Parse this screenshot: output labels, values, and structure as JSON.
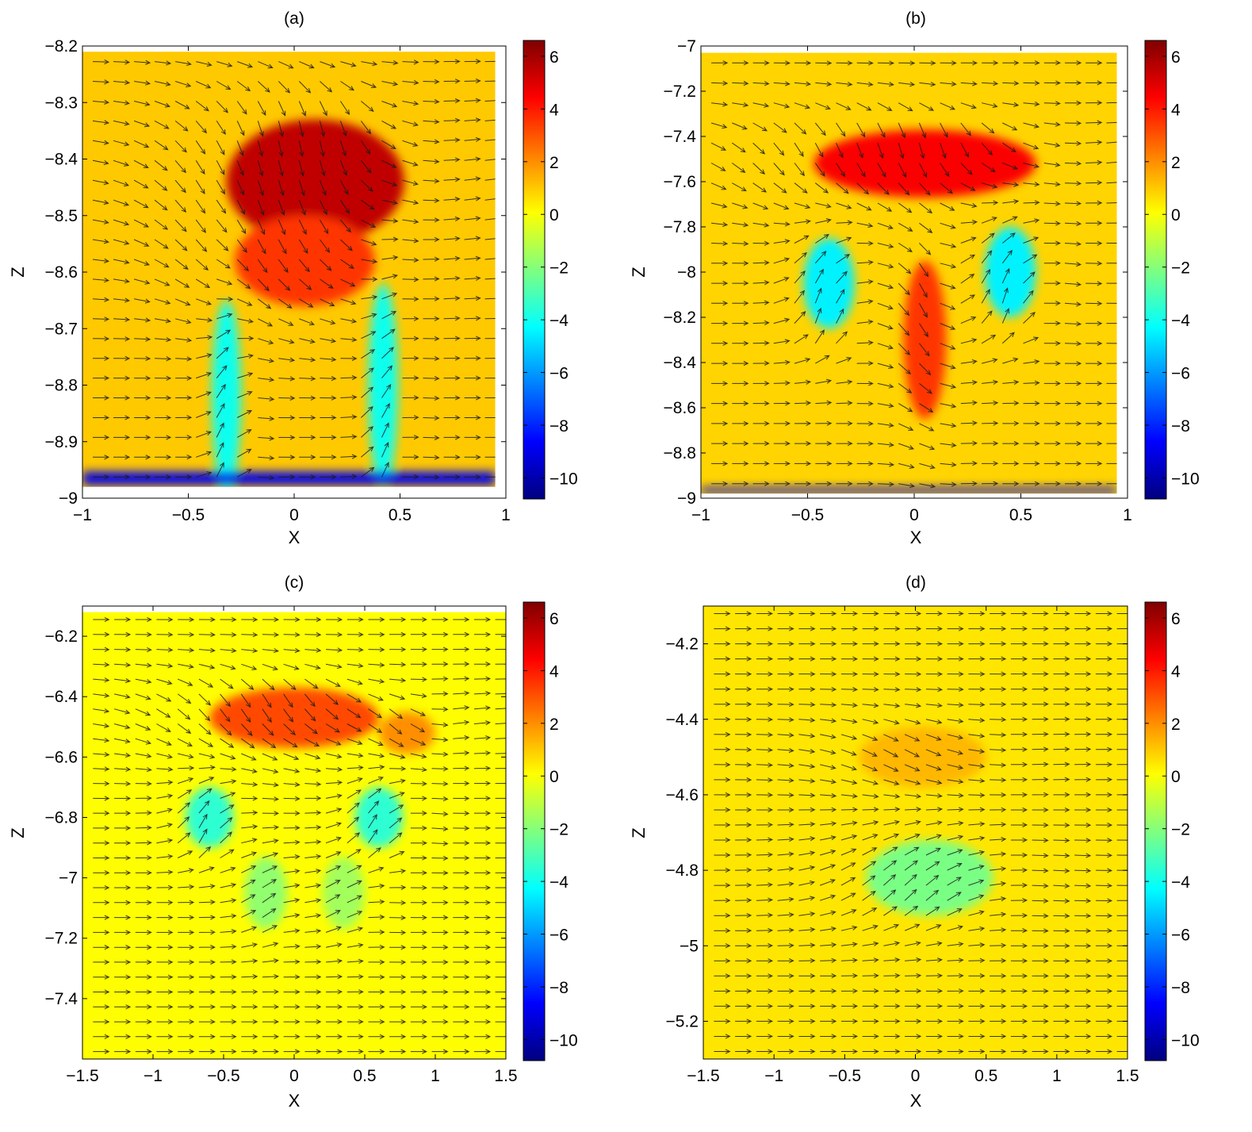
{
  "figure": {
    "colorbar_ticks": [
      "6",
      "4",
      "2",
      "0",
      "−2",
      "−4",
      "−6",
      "−8",
      "−10"
    ],
    "colormap": "jet",
    "colorbar_range": [
      -10.8,
      6.6
    ]
  },
  "chart_data": [
    {
      "type": "heatmap",
      "overlay": "vector field (quiver arrows)",
      "title": "(a)",
      "xlabel": "X",
      "ylabel": "Z",
      "xlim": [
        -1,
        1
      ],
      "ylim": [
        -9,
        -8.2
      ],
      "xticks": [
        "−1",
        "−0.5",
        "0",
        "0.5",
        "1"
      ],
      "yticks": [
        "−8.2",
        "−8.3",
        "−8.4",
        "−8.5",
        "−8.6",
        "−8.7",
        "−8.8",
        "−8.9",
        "−9"
      ],
      "data_extent": {
        "x": [
          -1,
          0.95
        ],
        "z": [
          -8.98,
          -8.21
        ]
      },
      "background_value": 1.0,
      "features": [
        {
          "kind": "blob",
          "x": 0.1,
          "z": -8.44,
          "sx": 0.42,
          "sz": 0.11,
          "value": 5.5
        },
        {
          "kind": "blob",
          "x": 0.05,
          "z": -8.58,
          "sx": 0.33,
          "sz": 0.08,
          "value": 3.5
        },
        {
          "kind": "blob",
          "x": -0.32,
          "z": -8.82,
          "sx": 0.07,
          "sz": 0.17,
          "value": -4
        },
        {
          "kind": "blob",
          "x": 0.42,
          "z": -8.8,
          "sx": 0.07,
          "sz": 0.18,
          "value": -4
        },
        {
          "kind": "band",
          "z": -8.965,
          "sz": 0.012,
          "value": -9
        }
      ]
    },
    {
      "type": "heatmap",
      "overlay": "vector field (quiver arrows)",
      "title": "(b)",
      "xlabel": "X",
      "ylabel": "Z",
      "xlim": [
        -1,
        1
      ],
      "ylim": [
        -9,
        -7
      ],
      "xticks": [
        "−1",
        "−0.5",
        "0",
        "0.5",
        "1"
      ],
      "yticks": [
        "−7",
        "−7.2",
        "−7.4",
        "−7.6",
        "−7.8",
        "−8",
        "−8.2",
        "−8.4",
        "−8.6",
        "−8.8",
        "−9"
      ],
      "data_extent": {
        "x": [
          -1,
          0.95
        ],
        "z": [
          -8.98,
          -7.03
        ]
      },
      "background_value": 0.8,
      "features": [
        {
          "kind": "blob",
          "x": 0.05,
          "z": -7.52,
          "sx": 0.52,
          "sz": 0.15,
          "value": 4.5
        },
        {
          "kind": "blob",
          "x": 0.05,
          "z": -8.3,
          "sx": 0.1,
          "sz": 0.35,
          "value": 3.5
        },
        {
          "kind": "blob",
          "x": -0.4,
          "z": -8.05,
          "sx": 0.12,
          "sz": 0.2,
          "value": -4.5
        },
        {
          "kind": "blob",
          "x": 0.45,
          "z": -8.0,
          "sx": 0.12,
          "sz": 0.2,
          "value": -4.5
        },
        {
          "kind": "band",
          "z": -8.965,
          "sz": 0.012,
          "value": -9
        }
      ]
    },
    {
      "type": "heatmap",
      "overlay": "vector field (quiver arrows)",
      "title": "(c)",
      "xlabel": "X",
      "ylabel": "Z",
      "xlim": [
        -1.5,
        1.5
      ],
      "ylim": [
        -7.6,
        -6.1
      ],
      "xticks": [
        "−1.5",
        "−1",
        "−0.5",
        "0",
        "0.5",
        "1",
        "1.5"
      ],
      "yticks": [
        "−6.2",
        "−6.4",
        "−6.6",
        "−6.8",
        "−7",
        "−7.2",
        "−7.4"
      ],
      "data_extent": {
        "x": [
          -1.5,
          1.5
        ],
        "z": [
          -7.6,
          -6.12
        ]
      },
      "background_value": 0.1,
      "features": [
        {
          "kind": "blob",
          "x": 0.0,
          "z": -6.47,
          "sx": 0.6,
          "sz": 0.1,
          "value": 3.2
        },
        {
          "kind": "blob",
          "x": 0.8,
          "z": -6.52,
          "sx": 0.2,
          "sz": 0.07,
          "value": 2.0
        },
        {
          "kind": "blob",
          "x": -0.6,
          "z": -6.8,
          "sx": 0.17,
          "sz": 0.1,
          "value": -3.5
        },
        {
          "kind": "blob",
          "x": 0.6,
          "z": -6.8,
          "sx": 0.17,
          "sz": 0.1,
          "value": -3.5
        },
        {
          "kind": "blob",
          "x": -0.2,
          "z": -7.05,
          "sx": 0.15,
          "sz": 0.12,
          "value": -1.8
        },
        {
          "kind": "blob",
          "x": 0.35,
          "z": -7.05,
          "sx": 0.15,
          "sz": 0.12,
          "value": -1.5
        }
      ]
    },
    {
      "type": "heatmap",
      "overlay": "vector field (quiver arrows)",
      "title": "(d)",
      "xlabel": "X",
      "ylabel": "Z",
      "xlim": [
        -1.5,
        1.5
      ],
      "ylim": [
        -5.3,
        -4.1
      ],
      "xticks": [
        "−1.5",
        "−1",
        "−0.5",
        "0",
        "0.5",
        "1",
        "1.5"
      ],
      "yticks": [
        "−4.2",
        "−4.4",
        "−4.6",
        "−4.8",
        "−5",
        "−5.2"
      ],
      "data_extent": {
        "x": [
          -1.5,
          1.5
        ],
        "z": [
          -5.3,
          -4.1
        ]
      },
      "background_value": 0.5,
      "features": [
        {
          "kind": "blob",
          "x": 0.05,
          "z": -4.5,
          "sx": 0.45,
          "sz": 0.08,
          "value": 1.3
        },
        {
          "kind": "blob",
          "x": 0.1,
          "z": -4.82,
          "sx": 0.45,
          "sz": 0.1,
          "value": -2.2
        }
      ]
    }
  ]
}
